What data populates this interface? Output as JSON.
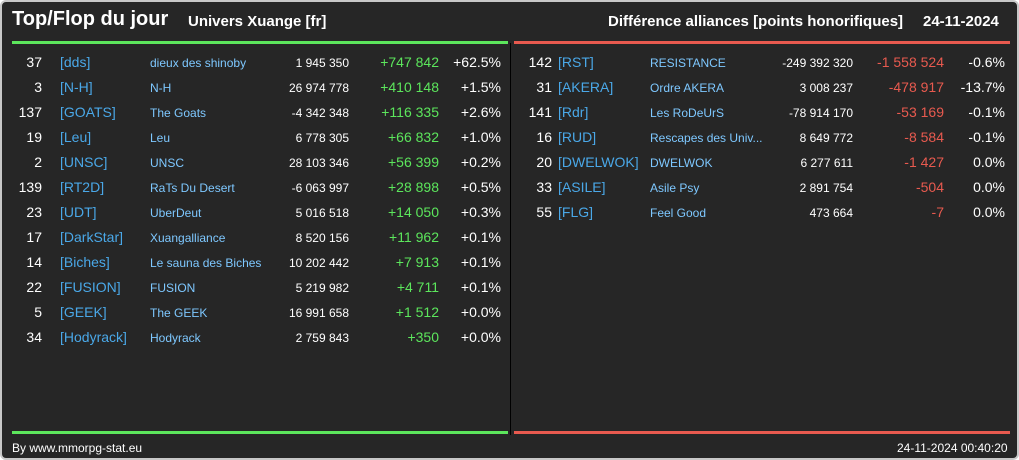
{
  "header": {
    "title": "Top/Flop du jour",
    "universe": "Univers Xuange [fr]",
    "section": "Différence alliances [points honorifiques]",
    "date": "24-11-2024"
  },
  "top": [
    {
      "rank": "37",
      "tag": "[dds]",
      "name": "dieux des shinoby",
      "points": "1 945 350",
      "diff": "+747 842",
      "pct": "+62.5%"
    },
    {
      "rank": "3",
      "tag": "[N-H]",
      "name": "N-H",
      "points": "26 974 778",
      "diff": "+410 148",
      "pct": "+1.5%"
    },
    {
      "rank": "137",
      "tag": "[GOATS]",
      "name": "The Goats",
      "points": "-4 342 348",
      "diff": "+116 335",
      "pct": "+2.6%"
    },
    {
      "rank": "19",
      "tag": "[Leu]",
      "name": "Leu",
      "points": "6 778 305",
      "diff": "+66 832",
      "pct": "+1.0%"
    },
    {
      "rank": "2",
      "tag": "[UNSC]",
      "name": "UNSC",
      "points": "28 103 346",
      "diff": "+56 399",
      "pct": "+0.2%"
    },
    {
      "rank": "139",
      "tag": "[RT2D]",
      "name": "RaTs Du Desert",
      "points": "-6 063 997",
      "diff": "+28 898",
      "pct": "+0.5%"
    },
    {
      "rank": "23",
      "tag": "[UDT]",
      "name": "UberDeut",
      "points": "5 016 518",
      "diff": "+14 050",
      "pct": "+0.3%"
    },
    {
      "rank": "17",
      "tag": "[DarkStar]",
      "name": "Xuangalliance",
      "points": "8 520 156",
      "diff": "+11 962",
      "pct": "+0.1%"
    },
    {
      "rank": "14",
      "tag": "[Biches]",
      "name": "Le sauna des Biches",
      "points": "10 202 442",
      "diff": "+7 913",
      "pct": "+0.1%"
    },
    {
      "rank": "22",
      "tag": "[FUSION]",
      "name": "FUSION",
      "points": "5 219 982",
      "diff": "+4 711",
      "pct": "+0.1%"
    },
    {
      "rank": "5",
      "tag": "[GEEK]",
      "name": "The GEEK",
      "points": "16 991 658",
      "diff": "+1 512",
      "pct": "+0.0%"
    },
    {
      "rank": "34",
      "tag": "[Hodyrack]",
      "name": "Hodyrack",
      "points": "2 759 843",
      "diff": "+350",
      "pct": "+0.0%"
    }
  ],
  "flop": [
    {
      "rank": "142",
      "tag": "[RST]",
      "name": "RESISTANCE",
      "points": "-249 392 320",
      "diff": "-1 558 524",
      "pct": "-0.6%"
    },
    {
      "rank": "31",
      "tag": "[AKERA]",
      "name": "Ordre AKERA",
      "points": "3 008 237",
      "diff": "-478 917",
      "pct": "-13.7%"
    },
    {
      "rank": "141",
      "tag": "[Rdr]",
      "name": "Les RoDeUrS",
      "points": "-78 914 170",
      "diff": "-53 169",
      "pct": "-0.1%"
    },
    {
      "rank": "16",
      "tag": "[RUD]",
      "name": "Rescapes des Univ...",
      "points": "8 649 772",
      "diff": "-8 584",
      "pct": "-0.1%"
    },
    {
      "rank": "20",
      "tag": "[DWELWOK]",
      "name": "DWELWOK",
      "points": "6 277 611",
      "diff": "-1 427",
      "pct": "0.0%"
    },
    {
      "rank": "33",
      "tag": "[ASILE]",
      "name": "Asile Psy",
      "points": "2 891 754",
      "diff": "-504",
      "pct": "0.0%"
    },
    {
      "rank": "55",
      "tag": "[FLG]",
      "name": "Feel Good",
      "points": "473 664",
      "diff": "-7",
      "pct": "0.0%"
    }
  ],
  "footer": {
    "source": "By www.mmorpg-stat.eu",
    "timestamp": "24-11-2024 00:40:20"
  },
  "colors": {
    "positive": "#5ce65c",
    "negative": "#e85a4f",
    "tag": "#4aa8e8",
    "name": "#7ec8ff"
  }
}
